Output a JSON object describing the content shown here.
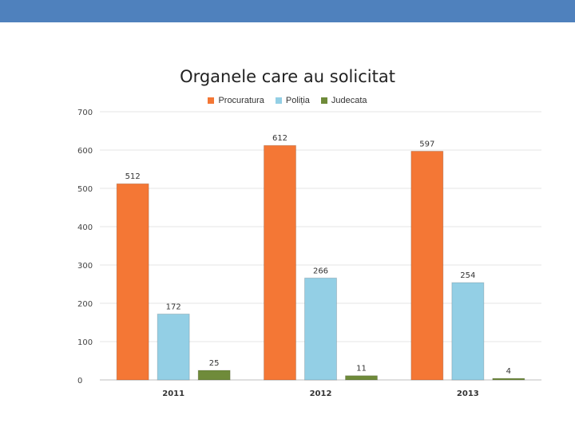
{
  "header": {
    "bar_color": "#4f81bd"
  },
  "chart_data": {
    "type": "bar",
    "title": "Organele care au solicitat",
    "categories": [
      "2011",
      "2012",
      "2013"
    ],
    "series": [
      {
        "name": "Procuratura",
        "color": "#f47735",
        "values": [
          512,
          612,
          597
        ]
      },
      {
        "name": "Poliția",
        "color": "#93cfe5",
        "values": [
          172,
          266,
          254
        ]
      },
      {
        "name": "Judecata",
        "color": "#6f8b3a",
        "values": [
          25,
          11,
          4
        ]
      }
    ],
    "yticks": [
      "0",
      "100",
      "200",
      "300",
      "400",
      "500",
      "600",
      "700"
    ],
    "ylim": [
      0,
      700
    ],
    "grid": true,
    "legend": "top"
  }
}
